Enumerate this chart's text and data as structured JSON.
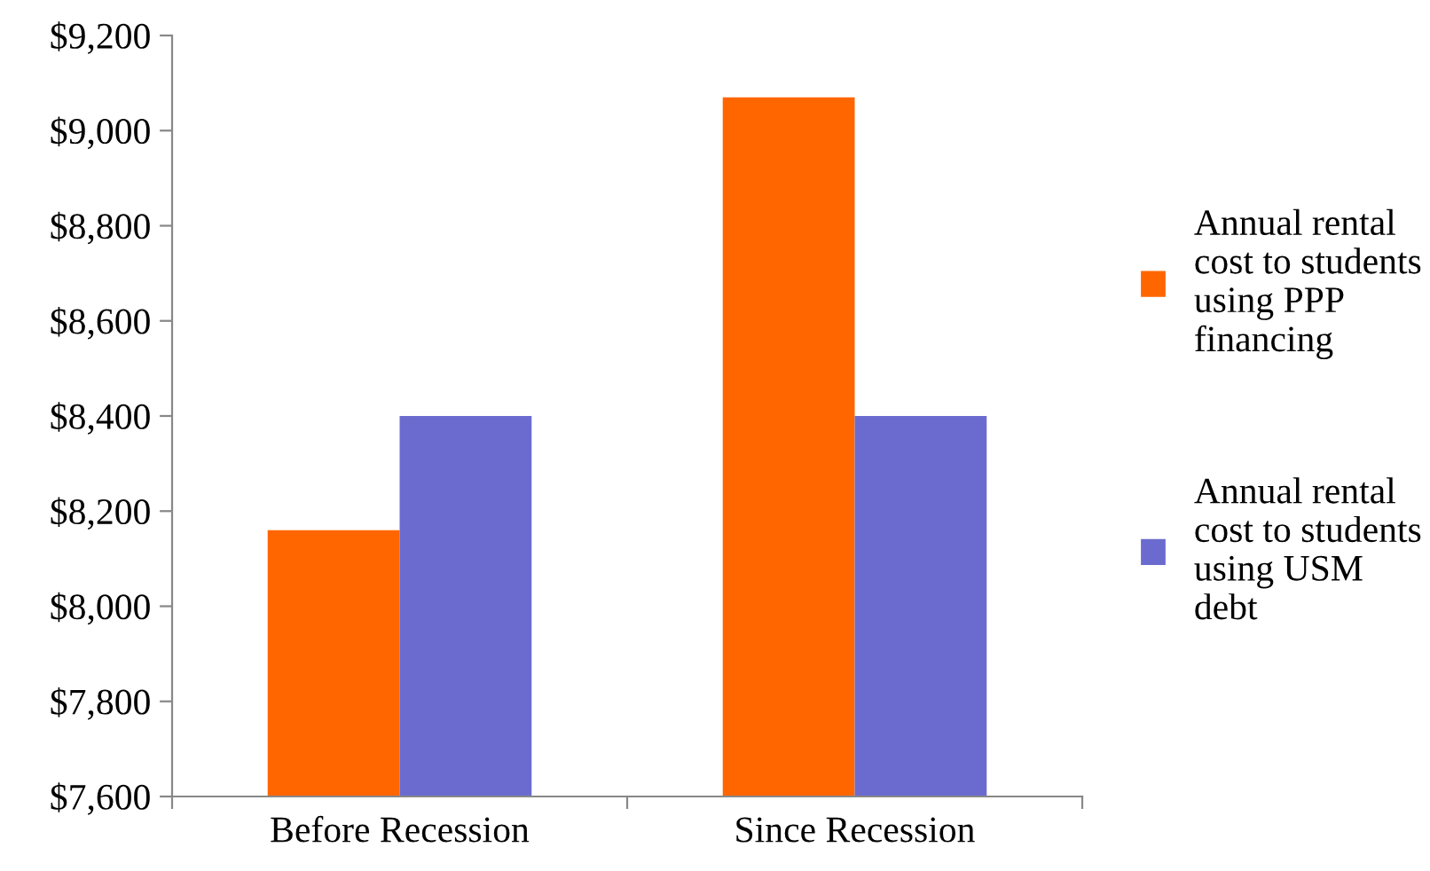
{
  "chart_data": {
    "type": "bar",
    "categories": [
      "Before Recession",
      "Since Recession"
    ],
    "series": [
      {
        "name": "Annual rental cost to students using PPP financing",
        "color": "#ff6600",
        "values": [
          8160,
          9070
        ]
      },
      {
        "name": "Annual rental cost to students using USM debt",
        "color": "#6b6bcf",
        "values": [
          8400,
          8400
        ]
      }
    ],
    "ylim": [
      7600,
      9200
    ],
    "yticks": [
      {
        "value": 7600,
        "label": "$7,600"
      },
      {
        "value": 7800,
        "label": "$7,800"
      },
      {
        "value": 8000,
        "label": "$8,000"
      },
      {
        "value": 8200,
        "label": "$8,200"
      },
      {
        "value": 8400,
        "label": "$8,400"
      },
      {
        "value": 8600,
        "label": "$8,600"
      },
      {
        "value": 8800,
        "label": "$8,800"
      },
      {
        "value": 9000,
        "label": "$9,000"
      },
      {
        "value": 9200,
        "label": "$9,200"
      }
    ],
    "grid": false,
    "legend": "right"
  }
}
